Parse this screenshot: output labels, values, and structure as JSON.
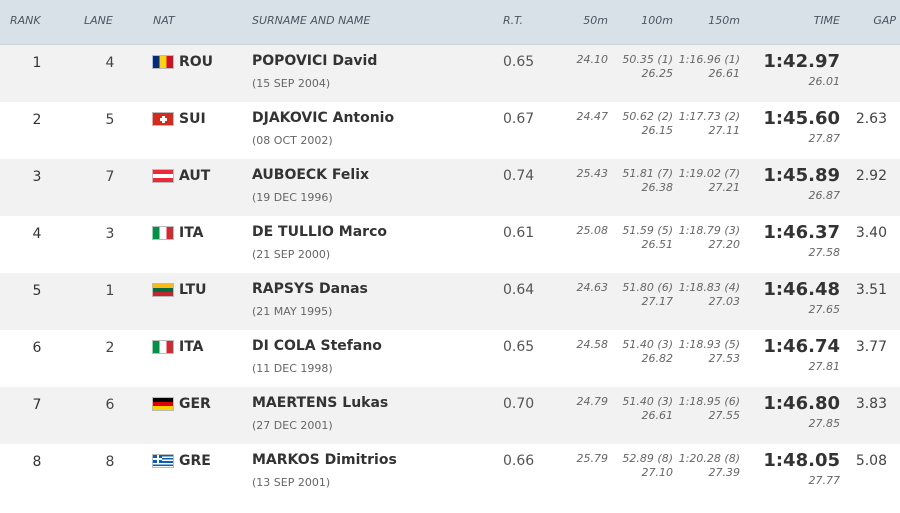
{
  "headers": {
    "rank": "RANK",
    "lane": "LANE",
    "nat": "NAT",
    "name": "SURNAME AND NAME",
    "rt": "R.T.",
    "s50": "50m",
    "s100": "100m",
    "s150": "150m",
    "time": "TIME",
    "gap": "GAP"
  },
  "rows": [
    {
      "rank": "1",
      "lane": "4",
      "nat": "ROU",
      "flag": "ROU",
      "name": "POPOVICI David",
      "dob": "(15 SEP 2004)",
      "rt": "0.65",
      "s50": "24.10",
      "s100": "50.35 (1)",
      "s100_split": "26.25",
      "s150": "1:16.96 (1)",
      "s150_split": "26.61",
      "time": "1:42.97",
      "split": "26.01",
      "gap": ""
    },
    {
      "rank": "2",
      "lane": "5",
      "nat": "SUI",
      "flag": "SUI",
      "name": "DJAKOVIC Antonio",
      "dob": "(08 OCT 2002)",
      "rt": "0.67",
      "s50": "24.47",
      "s100": "50.62 (2)",
      "s100_split": "26.15",
      "s150": "1:17.73 (2)",
      "s150_split": "27.11",
      "time": "1:45.60",
      "split": "27.87",
      "gap": "2.63"
    },
    {
      "rank": "3",
      "lane": "7",
      "nat": "AUT",
      "flag": "AUT",
      "name": "AUBOECK Felix",
      "dob": "(19 DEC 1996)",
      "rt": "0.74",
      "s50": "25.43",
      "s100": "51.81 (7)",
      "s100_split": "26.38",
      "s150": "1:19.02 (7)",
      "s150_split": "27.21",
      "time": "1:45.89",
      "split": "26.87",
      "gap": "2.92"
    },
    {
      "rank": "4",
      "lane": "3",
      "nat": "ITA",
      "flag": "ITA",
      "name": "DE TULLIO Marco",
      "dob": "(21 SEP 2000)",
      "rt": "0.61",
      "s50": "25.08",
      "s100": "51.59 (5)",
      "s100_split": "26.51",
      "s150": "1:18.79 (3)",
      "s150_split": "27.20",
      "time": "1:46.37",
      "split": "27.58",
      "gap": "3.40"
    },
    {
      "rank": "5",
      "lane": "1",
      "nat": "LTU",
      "flag": "LTU",
      "name": "RAPSYS Danas",
      "dob": "(21 MAY 1995)",
      "rt": "0.64",
      "s50": "24.63",
      "s100": "51.80 (6)",
      "s100_split": "27.17",
      "s150": "1:18.83 (4)",
      "s150_split": "27.03",
      "time": "1:46.48",
      "split": "27.65",
      "gap": "3.51"
    },
    {
      "rank": "6",
      "lane": "2",
      "nat": "ITA",
      "flag": "ITA",
      "name": "DI COLA Stefano",
      "dob": "(11 DEC 1998)",
      "rt": "0.65",
      "s50": "24.58",
      "s100": "51.40 (3)",
      "s100_split": "26.82",
      "s150": "1:18.93 (5)",
      "s150_split": "27.53",
      "time": "1:46.74",
      "split": "27.81",
      "gap": "3.77"
    },
    {
      "rank": "7",
      "lane": "6",
      "nat": "GER",
      "flag": "GER",
      "name": "MAERTENS Lukas",
      "dob": "(27 DEC 2001)",
      "rt": "0.70",
      "s50": "24.79",
      "s100": "51.40 (3)",
      "s100_split": "26.61",
      "s150": "1:18.95 (6)",
      "s150_split": "27.55",
      "time": "1:46.80",
      "split": "27.85",
      "gap": "3.83"
    },
    {
      "rank": "8",
      "lane": "8",
      "nat": "GRE",
      "flag": "GRE",
      "name": "MARKOS Dimitrios",
      "dob": "(13 SEP 2001)",
      "rt": "0.66",
      "s50": "25.79",
      "s100": "52.89 (8)",
      "s100_split": "27.10",
      "s150": "1:20.28 (8)",
      "s150_split": "27.39",
      "time": "1:48.05",
      "split": "27.77",
      "gap": "5.08"
    }
  ]
}
